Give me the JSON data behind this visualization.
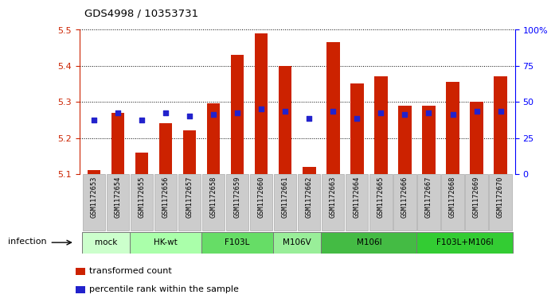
{
  "title": "GDS4998 / 10353731",
  "samples": [
    "GSM1172653",
    "GSM1172654",
    "GSM1172655",
    "GSM1172656",
    "GSM1172657",
    "GSM1172658",
    "GSM1172659",
    "GSM1172660",
    "GSM1172661",
    "GSM1172662",
    "GSM1172663",
    "GSM1172664",
    "GSM1172665",
    "GSM1172666",
    "GSM1172667",
    "GSM1172668",
    "GSM1172669",
    "GSM1172670"
  ],
  "bar_values": [
    5.11,
    5.27,
    5.16,
    5.24,
    5.22,
    5.295,
    5.43,
    5.49,
    5.4,
    5.12,
    5.465,
    5.35,
    5.37,
    5.29,
    5.29,
    5.355,
    5.3,
    5.37
  ],
  "dot_values": [
    5.25,
    5.27,
    5.25,
    5.27,
    5.26,
    5.265,
    5.27,
    5.28,
    5.275,
    5.255,
    5.275,
    5.255,
    5.27,
    5.265,
    5.27,
    5.265,
    5.275,
    5.275
  ],
  "bar_color": "#cc2200",
  "dot_color": "#2222cc",
  "ylim": [
    5.1,
    5.5
  ],
  "yticks": [
    5.1,
    5.2,
    5.3,
    5.4,
    5.5
  ],
  "y2ticks_vals": [
    0,
    25,
    50,
    75,
    100
  ],
  "y2labels": [
    "0",
    "25",
    "50",
    "75",
    "100%"
  ],
  "groups": [
    {
      "label": "mock",
      "start": 0,
      "end": 2,
      "color": "#ccffcc"
    },
    {
      "label": "HK-wt",
      "start": 2,
      "end": 5,
      "color": "#aaffaa"
    },
    {
      "label": "F103L",
      "start": 5,
      "end": 8,
      "color": "#66dd66"
    },
    {
      "label": "M106V",
      "start": 8,
      "end": 10,
      "color": "#99ee99"
    },
    {
      "label": "M106I",
      "start": 10,
      "end": 14,
      "color": "#44bb44"
    },
    {
      "label": "F103L+M106I",
      "start": 14,
      "end": 18,
      "color": "#33cc33"
    }
  ],
  "infection_label": "infection",
  "legend1": "transformed count",
  "legend2": "percentile rank within the sample",
  "bar_width": 0.55,
  "sample_box_color": "#cccccc",
  "sample_box_edge": "#aaaaaa"
}
